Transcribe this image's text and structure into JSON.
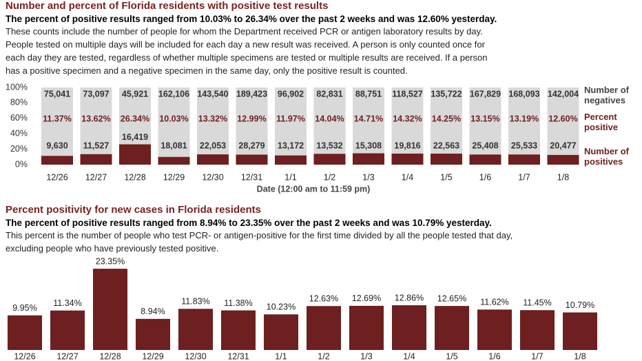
{
  "chart_data": [
    {
      "type": "stacked_percent_bar",
      "title": "Number and percent of Florida residents with positive test results",
      "subtitle": "The percent of positive results ranged from 10.03% to 26.34% over the past 2 weeks and was 12.60% yesterday.",
      "description": [
        "These counts include the number of people for whom the Department received PCR or antigen laboratory results by day.",
        "People tested on multiple days will be included for each day a new result was received. A person is only counted once for",
        "each day they are tested, regardless of whether multiple specimens are tested or multiple results are received. If a person",
        "has a positive specimen and a negative specimen in the same day, only the positive result is counted."
      ],
      "xlabel": "Date (12:00 am to 11:59 pm)",
      "categories": [
        "12/26",
        "12/27",
        "12/28",
        "12/29",
        "12/30",
        "12/31",
        "1/1",
        "1/2",
        "1/3",
        "1/4",
        "1/5",
        "1/6",
        "1/7",
        "1/8"
      ],
      "ylim": [
        0,
        100
      ],
      "yticks": [
        {
          "value": 0,
          "label": "0%"
        },
        {
          "value": 20,
          "label": "20%"
        },
        {
          "value": 40,
          "label": "40%"
        },
        {
          "value": 60,
          "label": "60%"
        },
        {
          "value": 80,
          "label": "80%"
        },
        {
          "value": 100,
          "label": "100%"
        }
      ],
      "grid": false,
      "series": [
        {
          "name": "Number of positives",
          "color": "#6e1f1f",
          "values": [
            9630,
            11527,
            16419,
            18081,
            22053,
            28279,
            13172,
            13532,
            15308,
            19816,
            22563,
            25408,
            25533,
            20477
          ],
          "value_labels": [
            "9,630",
            "11,527",
            "16,419",
            "18,081",
            "22,053",
            "28,279",
            "13,172",
            "13,532",
            "15,308",
            "19,816",
            "22,563",
            "25,408",
            "25,533",
            "20,477"
          ]
        },
        {
          "name": "Number of negatives",
          "color": "#d9d9d9",
          "values": [
            75041,
            73097,
            45921,
            162106,
            143540,
            189423,
            96902,
            82831,
            88751,
            118527,
            135722,
            167829,
            168093,
            142004
          ],
          "value_labels": [
            "75,041",
            "73,097",
            "45,921",
            "162,106",
            "143,540",
            "189,423",
            "96,902",
            "82,831",
            "88,751",
            "118,527",
            "135,722",
            "167,829",
            "168,093",
            "142,004"
          ]
        }
      ],
      "percent": {
        "name": "Percent positive",
        "color": "#6e1f1f",
        "values": [
          11.37,
          13.62,
          26.34,
          10.03,
          13.32,
          12.99,
          11.97,
          14.04,
          14.71,
          14.32,
          14.25,
          13.15,
          13.19,
          12.6
        ],
        "value_labels": [
          "11.37%",
          "13.62%",
          "26.34%",
          "10.03%",
          "13.32%",
          "12.99%",
          "11.97%",
          "14.04%",
          "14.71%",
          "14.32%",
          "14.25%",
          "13.15%",
          "13.19%",
          "12.60%"
        ]
      }
    },
    {
      "type": "bar",
      "title": "Percent positivity for new cases in Florida residents",
      "subtitle": "The percent of positive results ranged from 8.94% to 23.35% over the past 2 weeks and was 10.79% yesterday.",
      "description": [
        "This percent is the number of people who test PCR- or antigen-positive for the first time divided by all the people tested that day,",
        "excluding people who have previously tested positive."
      ],
      "categories": [
        "12/26",
        "12/27",
        "12/28",
        "12/29",
        "12/30",
        "12/31",
        "1/1",
        "1/2",
        "1/3",
        "1/4",
        "1/5",
        "1/6",
        "1/7",
        "1/8"
      ],
      "color": "#6e1f1f",
      "values": [
        9.95,
        11.34,
        23.35,
        8.94,
        11.83,
        11.38,
        10.23,
        12.63,
        12.69,
        12.86,
        12.65,
        11.62,
        11.45,
        10.79
      ],
      "value_labels": [
        "9.95%",
        "11.34%",
        "23.35%",
        "8.94%",
        "11.83%",
        "11.38%",
        "10.23%",
        "12.63%",
        "12.69%",
        "12.86%",
        "12.65%",
        "11.62%",
        "11.45%",
        "10.79%"
      ]
    }
  ]
}
